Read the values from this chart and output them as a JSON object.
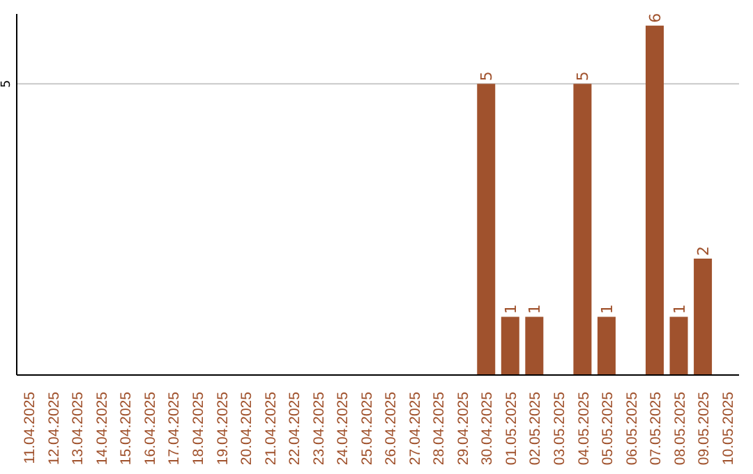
{
  "chart_data": {
    "type": "bar",
    "categories": [
      "11.04.2025",
      "12.04.2025",
      "13.04.2025",
      "14.04.2025",
      "15.04.2025",
      "16.04.2025",
      "17.04.2025",
      "18.04.2025",
      "19.04.2025",
      "20.04.2025",
      "21.04.2025",
      "22.04.2025",
      "23.04.2025",
      "24.04.2025",
      "25.04.2025",
      "26.04.2025",
      "27.04.2025",
      "28.04.2025",
      "29.04.2025",
      "30.04.2025",
      "01.05.2025",
      "02.05.2025",
      "03.05.2025",
      "04.05.2025",
      "05.05.2025",
      "06.05.2025",
      "07.05.2025",
      "08.05.2025",
      "09.05.2025",
      "10.05.2025"
    ],
    "values": [
      null,
      null,
      null,
      null,
      null,
      null,
      null,
      null,
      null,
      null,
      null,
      null,
      null,
      null,
      null,
      null,
      null,
      null,
      null,
      5,
      1,
      1,
      null,
      5,
      1,
      null,
      6,
      1,
      2,
      null
    ],
    "color": "#a0522d",
    "ylim": [
      0,
      6.2
    ],
    "yticks": [
      5
    ],
    "grid": "y",
    "data_labels": true
  }
}
